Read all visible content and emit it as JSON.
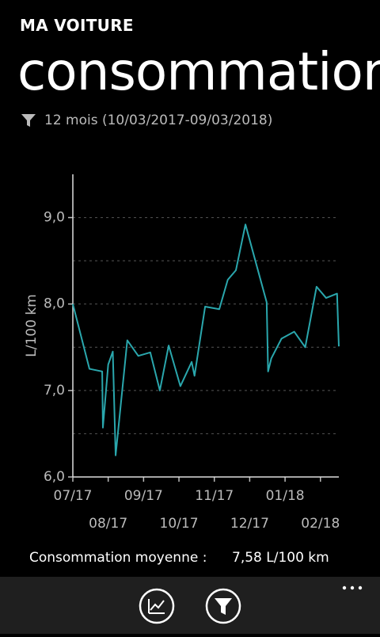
{
  "header": {
    "app": "MA VOITURE",
    "title": "consommation",
    "filter": "12 mois (10/03/2017-09/03/2018)"
  },
  "chart_data": {
    "type": "line",
    "y_label": "L/100 km",
    "color": "#2aa7ad",
    "x": [
      0,
      0.47,
      0.83,
      0.85,
      1.0,
      1.13,
      1.21,
      1.54,
      1.85,
      2.19,
      2.46,
      2.71,
      3.04,
      3.36,
      3.44,
      3.74,
      4.14,
      4.38,
      4.61,
      4.88,
      5.48,
      5.52,
      5.61,
      5.9,
      6.26,
      6.57,
      6.89,
      7.16,
      7.47,
      7.52
    ],
    "values": [
      8.0,
      7.25,
      7.22,
      6.57,
      7.3,
      7.45,
      6.25,
      7.58,
      7.4,
      7.44,
      7.0,
      7.52,
      7.05,
      7.33,
      7.17,
      7.97,
      7.94,
      8.28,
      8.39,
      8.92,
      8.02,
      7.22,
      7.37,
      7.6,
      7.68,
      7.5,
      8.2,
      8.07,
      8.12,
      7.51
    ],
    "xlim": [
      0,
      7.52
    ],
    "xticks": [
      {
        "value": 0,
        "label": "07/17"
      },
      {
        "value": 1,
        "label": "08/17"
      },
      {
        "value": 2,
        "label": "09/17"
      },
      {
        "value": 3,
        "label": "10/17"
      },
      {
        "value": 4,
        "label": "11/17"
      },
      {
        "value": 5,
        "label": "12/17"
      },
      {
        "value": 6,
        "label": "01/18"
      },
      {
        "value": 7,
        "label": "02/18"
      }
    ],
    "ylim": [
      6.0,
      9.5
    ],
    "yticks": [
      {
        "value": 6,
        "label": "6,0"
      },
      {
        "value": 7,
        "label": "7,0"
      },
      {
        "value": 8,
        "label": "8,0"
      },
      {
        "value": 9,
        "label": "9,0"
      }
    ],
    "y_grid": [
      6.5,
      7,
      7.5,
      8,
      8.5,
      9
    ]
  },
  "summary": {
    "label": "Consommation moyenne :",
    "value": "7,58 L/100 km"
  }
}
